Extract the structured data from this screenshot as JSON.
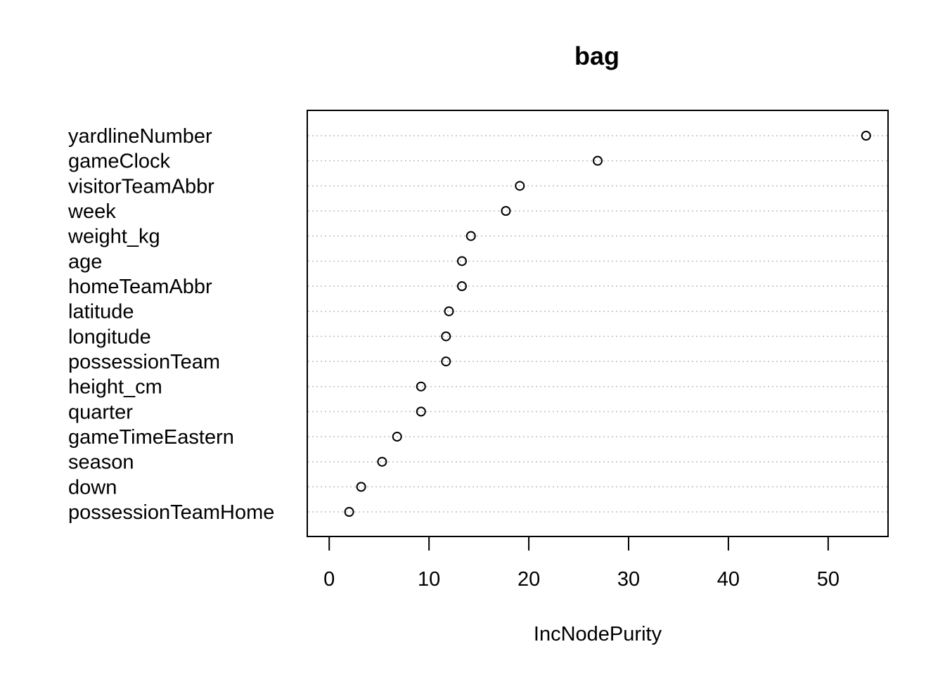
{
  "chart_data": {
    "type": "scatter",
    "subtype": "dotchart",
    "title": "bag",
    "xlabel": "IncNodePurity",
    "ylabel": "",
    "xlim": [
      -2.2,
      56
    ],
    "x_ticks": [
      0,
      10,
      20,
      30,
      40,
      50
    ],
    "grid": "dotted horizontal guide lines",
    "series": [
      {
        "values": [
          {
            "label": "yardlineNumber",
            "value": 53.8
          },
          {
            "label": "gameClock",
            "value": 26.9
          },
          {
            "label": "visitorTeamAbbr",
            "value": 19.1
          },
          {
            "label": "week",
            "value": 17.7
          },
          {
            "label": "weight_kg",
            "value": 14.2
          },
          {
            "label": "age",
            "value": 13.3
          },
          {
            "label": "homeTeamAbbr",
            "value": 13.3
          },
          {
            "label": "latitude",
            "value": 12.0
          },
          {
            "label": "longitude",
            "value": 11.7
          },
          {
            "label": "possessionTeam",
            "value": 11.7
          },
          {
            "label": "height_cm",
            "value": 9.2
          },
          {
            "label": "quarter",
            "value": 9.2
          },
          {
            "label": "gameTimeEastern",
            "value": 6.8
          },
          {
            "label": "season",
            "value": 5.3
          },
          {
            "label": "down",
            "value": 3.2
          },
          {
            "label": "possessionTeamHome",
            "value": 2.0
          }
        ]
      }
    ]
  }
}
